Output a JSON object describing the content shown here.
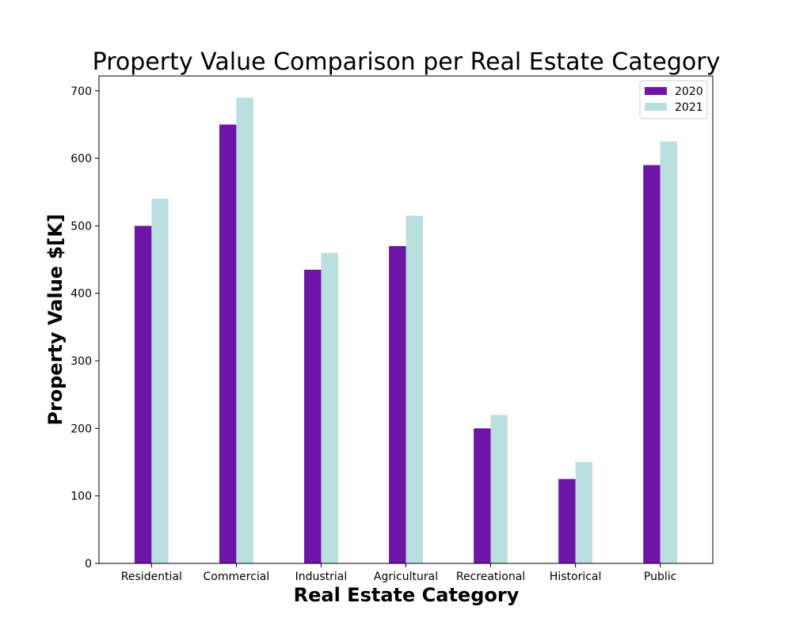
{
  "chart_data": {
    "type": "bar",
    "title": "Property Value Comparison per Real Estate Category",
    "xlabel": "Real Estate Category",
    "ylabel": "Property Value $[K]",
    "categories": [
      "Residential",
      "Commercial",
      "Industrial",
      "Agricultural",
      "Recreational",
      "Historical",
      "Public"
    ],
    "series": [
      {
        "name": "2020",
        "color": "#6f14a8",
        "values": [
          500,
          650,
          435,
          470,
          200,
          125,
          590
        ]
      },
      {
        "name": "2021",
        "color": "#b9e0df",
        "values": [
          540,
          690,
          460,
          515,
          220,
          150,
          625
        ]
      }
    ],
    "ylim": [
      0,
      722
    ],
    "yticks": [
      0,
      100,
      200,
      300,
      400,
      500,
      600,
      700
    ],
    "grid": false,
    "legend_position": "top-right"
  }
}
